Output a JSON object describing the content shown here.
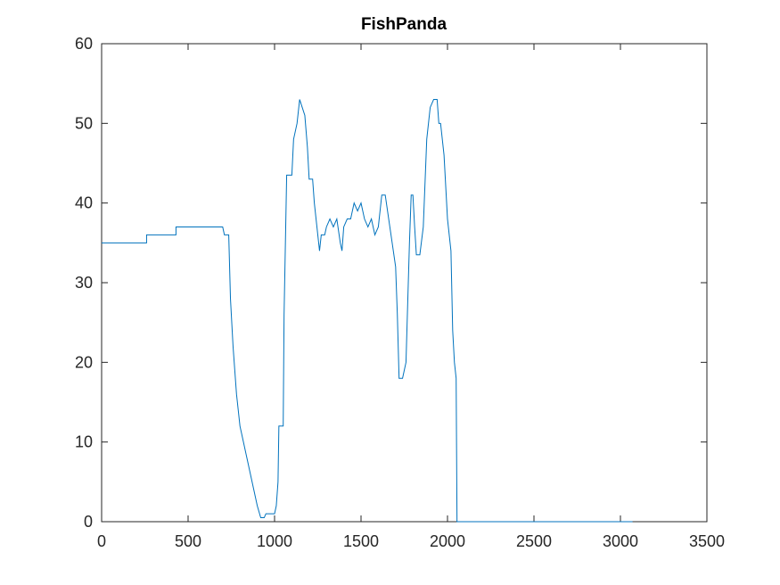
{
  "chart_data": {
    "type": "line",
    "title": "FishPanda",
    "x": [
      0,
      260,
      260,
      430,
      430,
      700,
      710,
      735,
      745,
      760,
      780,
      800,
      820,
      840,
      860,
      880,
      900,
      920,
      940,
      950,
      1000,
      1010,
      1020,
      1025,
      1050,
      1055,
      1070,
      1100,
      1110,
      1130,
      1145,
      1160,
      1175,
      1190,
      1200,
      1220,
      1230,
      1250,
      1260,
      1270,
      1290,
      1300,
      1320,
      1340,
      1360,
      1380,
      1390,
      1400,
      1420,
      1440,
      1460,
      1480,
      1500,
      1520,
      1540,
      1560,
      1580,
      1600,
      1620,
      1640,
      1660,
      1680,
      1700,
      1710,
      1720,
      1740,
      1760,
      1780,
      1790,
      1800,
      1810,
      1820,
      1840,
      1860,
      1880,
      1900,
      1920,
      1940,
      1950,
      1960,
      1980,
      2000,
      2020,
      2030,
      2040,
      2050,
      2055,
      3070
    ],
    "values": [
      35,
      35,
      36,
      36,
      37,
      37,
      36,
      36,
      28,
      22,
      16,
      12,
      10,
      8,
      6,
      4,
      2,
      0.5,
      0.5,
      1,
      1,
      2,
      5,
      12,
      12,
      26,
      43.5,
      43.5,
      48,
      50,
      53,
      52,
      51,
      47,
      43,
      43,
      40,
      36,
      34,
      36,
      36,
      37,
      38,
      37,
      38,
      35,
      34,
      37,
      38,
      38,
      40,
      39,
      40,
      38,
      37,
      38,
      36,
      37,
      41,
      41,
      38,
      35,
      32,
      26,
      18,
      18,
      20,
      35,
      41,
      41,
      37,
      33.5,
      33.5,
      37,
      48,
      52,
      53,
      53,
      50,
      50,
      46,
      38,
      34,
      24,
      20,
      18,
      0,
      0
    ],
    "color": "#0072bd",
    "xlim": [
      0,
      3500
    ],
    "xticks": [
      0,
      500,
      1000,
      1500,
      2000,
      2500,
      3000,
      3500
    ],
    "ylim": [
      0,
      60
    ],
    "yticks": [
      0,
      10,
      20,
      30,
      40,
      50,
      60
    ]
  }
}
